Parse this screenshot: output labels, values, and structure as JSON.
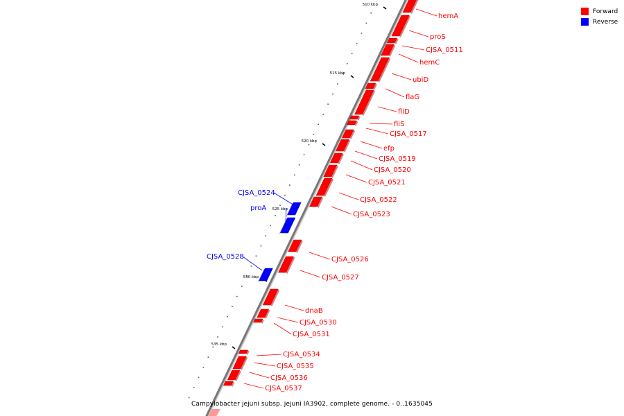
{
  "legend": {
    "forward": {
      "label": "Forward",
      "color": "#ff0000"
    },
    "reverse": {
      "label": "Reverse",
      "color": "#0000ff"
    }
  },
  "caption": "Campylobacter jejuni subsp. jejuni IA3902, complete genome. - 0..1635045",
  "ticks": [
    "510 kbp",
    "515 kbp",
    "520 kbp",
    "525 kbp",
    "530 kbp",
    "535 kbp"
  ],
  "genes": [
    {
      "name": "hemA",
      "strand": "forward"
    },
    {
      "name": "proS",
      "strand": "forward"
    },
    {
      "name": "CJSA_0511",
      "strand": "forward"
    },
    {
      "name": "hemC",
      "strand": "forward"
    },
    {
      "name": "ubiD",
      "strand": "forward"
    },
    {
      "name": "flaG",
      "strand": "forward"
    },
    {
      "name": "fliD",
      "strand": "forward"
    },
    {
      "name": "fliS",
      "strand": "forward"
    },
    {
      "name": "CJSA_0517",
      "strand": "forward"
    },
    {
      "name": "efp",
      "strand": "forward"
    },
    {
      "name": "CJSA_0519",
      "strand": "forward"
    },
    {
      "name": "CJSA_0520",
      "strand": "forward"
    },
    {
      "name": "CJSA_0521",
      "strand": "forward"
    },
    {
      "name": "CJSA_0522",
      "strand": "forward"
    },
    {
      "name": "CJSA_0523",
      "strand": "forward"
    },
    {
      "name": "CJSA_0524",
      "strand": "reverse"
    },
    {
      "name": "proA",
      "strand": "reverse"
    },
    {
      "name": "CJSA_0526",
      "strand": "forward"
    },
    {
      "name": "CJSA_0527",
      "strand": "forward"
    },
    {
      "name": "CJSA_0528",
      "strand": "reverse"
    },
    {
      "name": "dnaB",
      "strand": "forward"
    },
    {
      "name": "CJSA_0530",
      "strand": "forward"
    },
    {
      "name": "CJSA_0531",
      "strand": "forward"
    },
    {
      "name": "CJSA_0534",
      "strand": "forward"
    },
    {
      "name": "CJSA_0535",
      "strand": "forward"
    },
    {
      "name": "CJSA_0536",
      "strand": "forward"
    },
    {
      "name": "CJSA_0537",
      "strand": "forward"
    }
  ]
}
